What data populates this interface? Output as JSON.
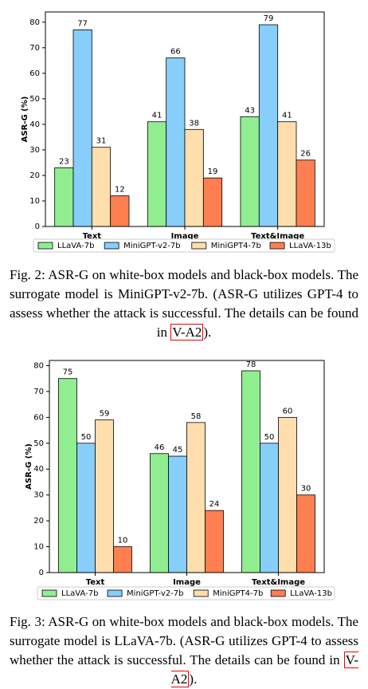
{
  "chart_data": [
    {
      "type": "bar",
      "ylabel": "ASR-G (%)",
      "categories": [
        "Text",
        "Image",
        "Text&Image"
      ],
      "series": [
        {
          "name": "LLaVA-7b",
          "color": "#90ee90",
          "values": [
            23,
            41,
            43
          ]
        },
        {
          "name": "MiniGPT-v2-7b",
          "color": "#87cefa",
          "values": [
            77,
            66,
            79
          ]
        },
        {
          "name": "MiniGPT4-7b",
          "color": "#ffdead",
          "values": [
            31,
            38,
            41
          ]
        },
        {
          "name": "LLaVA-13b",
          "color": "#ff7f50",
          "values": [
            12,
            19,
            26
          ]
        }
      ],
      "ylim": [
        0,
        84
      ],
      "yticks": [
        0,
        10,
        20,
        30,
        40,
        50,
        60,
        70,
        80
      ],
      "legend": "bottom"
    },
    {
      "type": "bar",
      "ylabel": "ASR-G (%)",
      "categories": [
        "Text",
        "Image",
        "Text&Image"
      ],
      "series": [
        {
          "name": "LLaVA-7b",
          "color": "#90ee90",
          "values": [
            75,
            46,
            78
          ]
        },
        {
          "name": "MiniGPT-v2-7b",
          "color": "#87cefa",
          "values": [
            50,
            45,
            50
          ]
        },
        {
          "name": "MiniGPT4-7b",
          "color": "#ffdead",
          "values": [
            59,
            58,
            60
          ]
        },
        {
          "name": "LLaVA-13b",
          "color": "#ff7f50",
          "values": [
            10,
            24,
            30
          ]
        }
      ],
      "ylim": [
        0,
        82
      ],
      "yticks": [
        0,
        10,
        20,
        30,
        40,
        50,
        60,
        70,
        80
      ],
      "legend": "bottom"
    }
  ],
  "captions": [
    {
      "text": "Fig. 2: ASR-G on white-box models and black-box models. The surrogate model is MiniGPT-v2-7b. (ASR-G utilizes GPT-4 to assess whether the attack is successful. The details can be found in",
      "link": "V-A2",
      "end": ")."
    },
    {
      "text": "Fig. 3: ASR-G on white-box models and black-box models. The surrogate model is LLaVA-7b. (ASR-G utilizes GPT-4 to assess whether the attack is successful. The details can be found in",
      "link": "V-A2",
      "end": ")."
    }
  ]
}
